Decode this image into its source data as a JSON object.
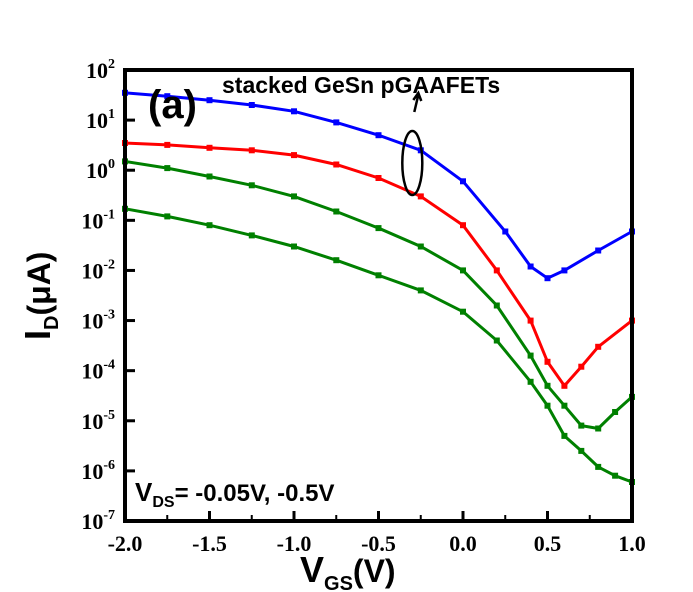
{
  "chart_data": {
    "type": "line",
    "title": "",
    "panel_label": "(a)",
    "annotation": "stacked GeSn pGAAFETs",
    "condition": {
      "prefix": "V",
      "sub": "DS",
      "text": "= -0.05V, -0.5V"
    },
    "xlabel": {
      "main": "V",
      "sub": "GS",
      "unit": "(V)"
    },
    "ylabel": {
      "main": "I",
      "sub": "D",
      "unit": "(μA)"
    },
    "xlim": [
      -2.0,
      1.0
    ],
    "ylim": [
      1e-07,
      100
    ],
    "yscale": "log",
    "x_ticks": [
      "-2.0",
      "-1.5",
      "-1.0",
      "-0.5",
      "0.0",
      "0.5",
      "1.0"
    ],
    "y_ticks": [
      {
        "base": "10",
        "exp": "2"
      },
      {
        "base": "10",
        "exp": "1"
      },
      {
        "base": "10",
        "exp": "0"
      },
      {
        "base": "10",
        "exp": "-1"
      },
      {
        "base": "10",
        "exp": "-2"
      },
      {
        "base": "10",
        "exp": "-3"
      },
      {
        "base": "10",
        "exp": "-4"
      },
      {
        "base": "10",
        "exp": "-5"
      },
      {
        "base": "10",
        "exp": "-6"
      },
      {
        "base": "10",
        "exp": "-7"
      }
    ],
    "grid": false,
    "series": [
      {
        "color": "#0000ff",
        "x": [
          -2.0,
          -1.75,
          -1.5,
          -1.25,
          -1.0,
          -0.75,
          -0.5,
          -0.25,
          0.0,
          0.25,
          0.4,
          0.5,
          0.6,
          0.8,
          1.0
        ],
        "y": [
          35,
          30,
          25,
          20,
          15,
          9,
          5,
          2.5,
          0.6,
          0.06,
          0.012,
          0.007,
          0.01,
          0.025,
          0.06
        ]
      },
      {
        "color": "#ff0000",
        "x": [
          -2.0,
          -1.75,
          -1.5,
          -1.25,
          -1.0,
          -0.75,
          -0.5,
          -0.25,
          0.0,
          0.2,
          0.4,
          0.5,
          0.6,
          0.7,
          0.8,
          1.0
        ],
        "y": [
          3.5,
          3.2,
          2.8,
          2.5,
          2.0,
          1.3,
          0.7,
          0.3,
          0.08,
          0.01,
          0.001,
          0.00015,
          5e-05,
          0.00012,
          0.0003,
          0.001
        ]
      },
      {
        "color": "#008000",
        "x": [
          -2.0,
          -1.75,
          -1.5,
          -1.25,
          -1.0,
          -0.75,
          -0.5,
          -0.25,
          0.0,
          0.2,
          0.4,
          0.5,
          0.6,
          0.7,
          0.8,
          0.9,
          1.0
        ],
        "y": [
          1.5,
          1.1,
          0.75,
          0.5,
          0.3,
          0.15,
          0.07,
          0.03,
          0.01,
          0.002,
          0.0002,
          5e-05,
          2e-05,
          8e-06,
          7e-06,
          1.5e-05,
          3e-05
        ]
      },
      {
        "color": "#008000",
        "x": [
          -2.0,
          -1.75,
          -1.5,
          -1.25,
          -1.0,
          -0.75,
          -0.5,
          -0.25,
          0.0,
          0.2,
          0.4,
          0.5,
          0.6,
          0.7,
          0.8,
          0.9,
          1.0
        ],
        "y": [
          0.17,
          0.12,
          0.08,
          0.05,
          0.03,
          0.016,
          0.008,
          0.004,
          0.0015,
          0.0004,
          6e-05,
          2e-05,
          5e-06,
          2.5e-06,
          1.2e-06,
          8e-07,
          6e-07
        ]
      }
    ]
  }
}
